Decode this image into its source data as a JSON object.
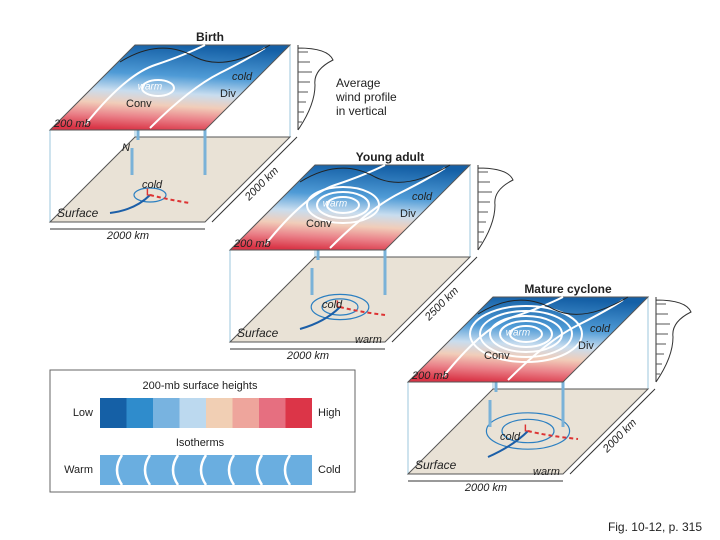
{
  "panels": [
    {
      "title": "Birth",
      "upper": {
        "cold": "cold",
        "warm": "warm",
        "conv": "Conv",
        "div": "Div",
        "level": "200 mb"
      },
      "surface": {
        "north": "N",
        "cold": "cold",
        "label": "Surface",
        "width": "2000 km",
        "depth": "2000 km"
      }
    },
    {
      "title": "Young adult",
      "upper": {
        "cold": "cold",
        "warm": "warm",
        "conv": "Conv",
        "div": "Div",
        "level": "200 mb"
      },
      "surface": {
        "cold": "cold",
        "warm": "warm",
        "label": "Surface",
        "width": "2000 km",
        "depth": "2500 km"
      }
    },
    {
      "title": "Mature cyclone",
      "upper": {
        "cold": "cold",
        "warm": "warm",
        "conv": "Conv",
        "div": "Div",
        "level": "200 mb"
      },
      "surface": {
        "cold": "cold",
        "warm": "warm",
        "label": "Surface",
        "width": "2000 km",
        "depth": "2000 km"
      }
    }
  ],
  "wind_profile_note": [
    "Average",
    "wind profile",
    "in vertical"
  ],
  "legend": {
    "title": "200-mb surface heights",
    "low": "Low",
    "high": "High",
    "isotherms_title": "Isotherms",
    "warm": "Warm",
    "cold": "Cold"
  },
  "caption": "Fig. 10-12, p. 315"
}
